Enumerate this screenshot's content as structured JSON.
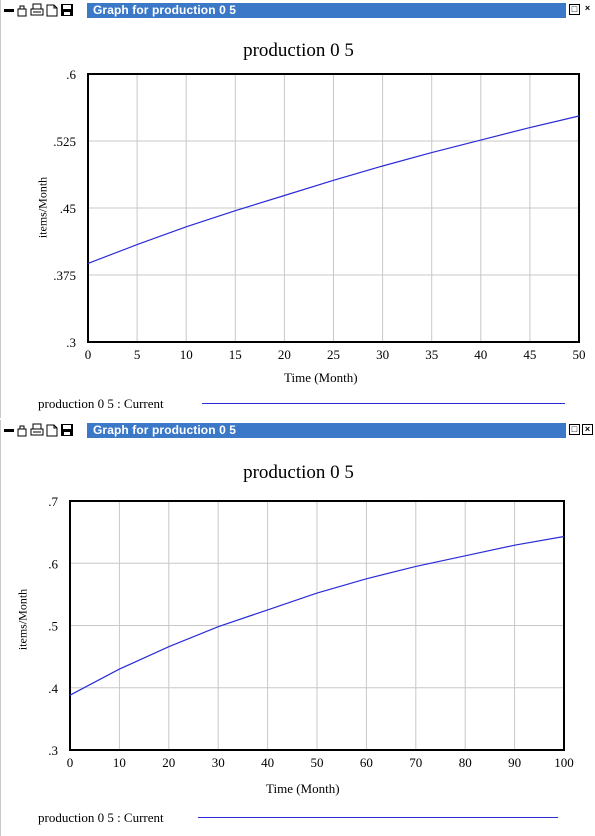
{
  "windows": [
    {
      "title": "Graph for production 0 5",
      "icons": [
        "minimize-dash-icon",
        "lock-icon",
        "print-icon",
        "copy-icon",
        "save-icon"
      ],
      "window_buttons": [
        "restore",
        "close"
      ],
      "chart_data": {
        "type": "line",
        "title": "production 0 5",
        "xlabel": "Time (Month)",
        "ylabel": "items/Month",
        "xlim": [
          0,
          50
        ],
        "ylim": [
          0.3,
          0.6
        ],
        "xticks": [
          "0",
          "5",
          "10",
          "15",
          "20",
          "25",
          "30",
          "35",
          "40",
          "45",
          "50"
        ],
        "yticks": [
          ".6",
          ".525",
          ".45",
          ".375",
          ".3"
        ],
        "grid": true,
        "series": [
          {
            "name": "production 0 5 : Current",
            "color": "#2b2bd8",
            "x": [
              0,
              5,
              10,
              15,
              20,
              25,
              30,
              35,
              40,
              45,
              50
            ],
            "y": [
              0.388,
              0.409,
              0.429,
              0.447,
              0.464,
              0.481,
              0.497,
              0.512,
              0.526,
              0.54,
              0.553
            ]
          }
        ]
      },
      "legend": {
        "label": "production 0 5 : Current"
      }
    },
    {
      "title": "Graph for production 0 5",
      "icons": [
        "minimize-dash-icon",
        "lock-icon",
        "print-icon",
        "copy-icon",
        "save-icon"
      ],
      "window_buttons": [
        "restore",
        "close"
      ],
      "chart_data": {
        "type": "line",
        "title": "production 0 5",
        "xlabel": "Time (Month)",
        "ylabel": "items/Month",
        "xlim": [
          0,
          100
        ],
        "ylim": [
          0.3,
          0.7
        ],
        "xticks": [
          "0",
          "10",
          "20",
          "30",
          "40",
          "50",
          "60",
          "70",
          "80",
          "90",
          "100"
        ],
        "yticks": [
          ".7",
          ".6",
          ".5",
          ".4",
          ".3"
        ],
        "grid": true,
        "series": [
          {
            "name": "production 0 5 : Current",
            "color": "#2b2bd8",
            "x": [
              0,
              10,
              20,
              30,
              40,
              50,
              60,
              70,
              80,
              90,
              100
            ],
            "y": [
              0.388,
              0.43,
              0.466,
              0.498,
              0.525,
              0.552,
              0.575,
              0.595,
              0.612,
              0.629,
              0.643
            ]
          }
        ]
      },
      "legend": {
        "label": "production 0 5 : Current"
      }
    }
  ]
}
